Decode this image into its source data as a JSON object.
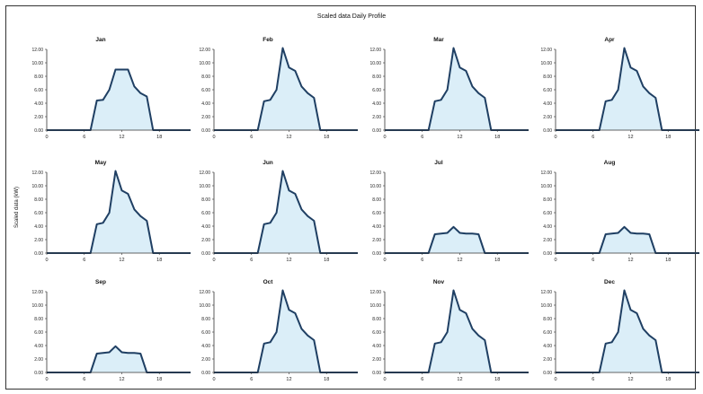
{
  "title": "Scaled data Daily Profile",
  "ylabel": "Scaled data (kW)",
  "colors": {
    "line": "#1f3f63",
    "fill": "#dbeef8",
    "axis": "#333333"
  },
  "chart_data": [
    {
      "type": "area",
      "title": "Jan",
      "xticks": [
        0,
        6,
        12,
        18
      ],
      "yticks": [
        "0.00",
        "2.00",
        "4.00",
        "6.00",
        "8.00",
        "10.00",
        "12.00"
      ],
      "xlim": [
        0,
        23
      ],
      "ylim": [
        0,
        12
      ],
      "grid": false,
      "x": [
        0,
        1,
        2,
        3,
        4,
        5,
        6,
        7,
        8,
        9,
        10,
        11,
        12,
        13,
        14,
        15,
        16,
        17,
        18,
        19,
        20,
        21,
        22,
        23
      ],
      "values": [
        0,
        0,
        0,
        0,
        0,
        0,
        0,
        0,
        4.4,
        4.5,
        6,
        9,
        9,
        9,
        6.5,
        5.5,
        5,
        0,
        0,
        0,
        0,
        0,
        0,
        0
      ]
    },
    {
      "type": "area",
      "title": "Feb",
      "xticks": [
        0,
        6,
        12,
        18
      ],
      "yticks": [
        "0.00",
        "2.00",
        "4.00",
        "6.00",
        "8.00",
        "10.00",
        "12.00"
      ],
      "xlim": [
        0,
        23
      ],
      "ylim": [
        0,
        12
      ],
      "grid": false,
      "x": [
        0,
        1,
        2,
        3,
        4,
        5,
        6,
        7,
        8,
        9,
        10,
        11,
        12,
        13,
        14,
        15,
        16,
        17,
        18,
        19,
        20,
        21,
        22,
        23
      ],
      "values": [
        0,
        0,
        0,
        0,
        0,
        0,
        0,
        0,
        4.3,
        4.5,
        6,
        12.2,
        9.3,
        8.8,
        6.5,
        5.5,
        4.8,
        0,
        0,
        0,
        0,
        0,
        0,
        0
      ]
    },
    {
      "type": "area",
      "title": "Mar",
      "xticks": [
        0,
        6,
        12,
        18
      ],
      "yticks": [
        "0.00",
        "2.00",
        "4.00",
        "6.00",
        "8.00",
        "10.00",
        "12.00"
      ],
      "xlim": [
        0,
        23
      ],
      "ylim": [
        0,
        12
      ],
      "grid": false,
      "x": [
        0,
        1,
        2,
        3,
        4,
        5,
        6,
        7,
        8,
        9,
        10,
        11,
        12,
        13,
        14,
        15,
        16,
        17,
        18,
        19,
        20,
        21,
        22,
        23
      ],
      "values": [
        0,
        0,
        0,
        0,
        0,
        0,
        0,
        0,
        4.3,
        4.5,
        6,
        12.2,
        9.3,
        8.8,
        6.5,
        5.5,
        4.8,
        0,
        0,
        0,
        0,
        0,
        0,
        0
      ]
    },
    {
      "type": "area",
      "title": "Apr",
      "xticks": [
        0,
        6,
        12,
        18
      ],
      "yticks": [
        "0.00",
        "2.00",
        "4.00",
        "6.00",
        "8.00",
        "10.00",
        "12.00"
      ],
      "xlim": [
        0,
        23
      ],
      "ylim": [
        0,
        12
      ],
      "grid": false,
      "x": [
        0,
        1,
        2,
        3,
        4,
        5,
        6,
        7,
        8,
        9,
        10,
        11,
        12,
        13,
        14,
        15,
        16,
        17,
        18,
        19,
        20,
        21,
        22,
        23
      ],
      "values": [
        0,
        0,
        0,
        0,
        0,
        0,
        0,
        0,
        4.3,
        4.5,
        6,
        12.2,
        9.3,
        8.8,
        6.5,
        5.5,
        4.8,
        0,
        0,
        0,
        0,
        0,
        0,
        0
      ]
    },
    {
      "type": "area",
      "title": "May",
      "xticks": [
        0,
        6,
        12,
        18
      ],
      "yticks": [
        "0.00",
        "2.00",
        "4.00",
        "6.00",
        "8.00",
        "10.00",
        "12.00"
      ],
      "xlim": [
        0,
        23
      ],
      "ylim": [
        0,
        12
      ],
      "grid": false,
      "x": [
        0,
        1,
        2,
        3,
        4,
        5,
        6,
        7,
        8,
        9,
        10,
        11,
        12,
        13,
        14,
        15,
        16,
        17,
        18,
        19,
        20,
        21,
        22,
        23
      ],
      "values": [
        0,
        0,
        0,
        0,
        0,
        0,
        0,
        0,
        4.3,
        4.5,
        6,
        12.2,
        9.3,
        8.8,
        6.5,
        5.5,
        4.8,
        0,
        0,
        0,
        0,
        0,
        0,
        0
      ]
    },
    {
      "type": "area",
      "title": "Jun",
      "xticks": [
        0,
        6,
        12,
        18
      ],
      "yticks": [
        "0.00",
        "2.00",
        "4.00",
        "6.00",
        "8.00",
        "10.00",
        "12.00"
      ],
      "xlim": [
        0,
        23
      ],
      "ylim": [
        0,
        12
      ],
      "grid": false,
      "x": [
        0,
        1,
        2,
        3,
        4,
        5,
        6,
        7,
        8,
        9,
        10,
        11,
        12,
        13,
        14,
        15,
        16,
        17,
        18,
        19,
        20,
        21,
        22,
        23
      ],
      "values": [
        0,
        0,
        0,
        0,
        0,
        0,
        0,
        0,
        4.3,
        4.5,
        6,
        12.2,
        9.3,
        8.8,
        6.5,
        5.5,
        4.8,
        0,
        0,
        0,
        0,
        0,
        0,
        0
      ]
    },
    {
      "type": "area",
      "title": "Jul",
      "xticks": [
        0,
        6,
        12,
        18
      ],
      "yticks": [
        "0.00",
        "2.00",
        "4.00",
        "6.00",
        "8.00",
        "10.00",
        "12.00"
      ],
      "xlim": [
        0,
        23
      ],
      "ylim": [
        0,
        12
      ],
      "grid": false,
      "x": [
        0,
        1,
        2,
        3,
        4,
        5,
        6,
        7,
        8,
        9,
        10,
        11,
        12,
        13,
        14,
        15,
        16,
        17,
        18,
        19,
        20,
        21,
        22,
        23
      ],
      "values": [
        0,
        0,
        0,
        0,
        0,
        0,
        0,
        0,
        2.8,
        2.9,
        3,
        3.9,
        3,
        2.9,
        2.9,
        2.8,
        0,
        0,
        0,
        0,
        0,
        0,
        0,
        0
      ]
    },
    {
      "type": "area",
      "title": "Aug",
      "xticks": [
        0,
        6,
        12,
        18
      ],
      "yticks": [
        "0.00",
        "2.00",
        "4.00",
        "6.00",
        "8.00",
        "10.00",
        "12.00"
      ],
      "xlim": [
        0,
        23
      ],
      "ylim": [
        0,
        12
      ],
      "grid": false,
      "x": [
        0,
        1,
        2,
        3,
        4,
        5,
        6,
        7,
        8,
        9,
        10,
        11,
        12,
        13,
        14,
        15,
        16,
        17,
        18,
        19,
        20,
        21,
        22,
        23
      ],
      "values": [
        0,
        0,
        0,
        0,
        0,
        0,
        0,
        0,
        2.8,
        2.9,
        3,
        3.9,
        3,
        2.9,
        2.9,
        2.8,
        0,
        0,
        0,
        0,
        0,
        0,
        0,
        0
      ]
    },
    {
      "type": "area",
      "title": "Sep",
      "xticks": [
        0,
        6,
        12,
        18
      ],
      "yticks": [
        "0.00",
        "2.00",
        "4.00",
        "6.00",
        "8.00",
        "10.00",
        "12.00"
      ],
      "xlim": [
        0,
        23
      ],
      "ylim": [
        0,
        12
      ],
      "grid": false,
      "x": [
        0,
        1,
        2,
        3,
        4,
        5,
        6,
        7,
        8,
        9,
        10,
        11,
        12,
        13,
        14,
        15,
        16,
        17,
        18,
        19,
        20,
        21,
        22,
        23
      ],
      "values": [
        0,
        0,
        0,
        0,
        0,
        0,
        0,
        0,
        2.8,
        2.9,
        3,
        3.9,
        3,
        2.9,
        2.9,
        2.8,
        0,
        0,
        0,
        0,
        0,
        0,
        0,
        0
      ]
    },
    {
      "type": "area",
      "title": "Oct",
      "xticks": [
        0,
        6,
        12,
        18
      ],
      "yticks": [
        "0.00",
        "2.00",
        "4.00",
        "6.00",
        "8.00",
        "10.00",
        "12.00"
      ],
      "xlim": [
        0,
        23
      ],
      "ylim": [
        0,
        12
      ],
      "grid": false,
      "x": [
        0,
        1,
        2,
        3,
        4,
        5,
        6,
        7,
        8,
        9,
        10,
        11,
        12,
        13,
        14,
        15,
        16,
        17,
        18,
        19,
        20,
        21,
        22,
        23
      ],
      "values": [
        0,
        0,
        0,
        0,
        0,
        0,
        0,
        0,
        4.3,
        4.5,
        6,
        12.2,
        9.3,
        8.8,
        6.5,
        5.5,
        4.8,
        0,
        0,
        0,
        0,
        0,
        0,
        0
      ]
    },
    {
      "type": "area",
      "title": "Nov",
      "xticks": [
        0,
        6,
        12,
        18
      ],
      "yticks": [
        "0.00",
        "2.00",
        "4.00",
        "6.00",
        "8.00",
        "10.00",
        "12.00"
      ],
      "xlim": [
        0,
        23
      ],
      "ylim": [
        0,
        12
      ],
      "grid": false,
      "x": [
        0,
        1,
        2,
        3,
        4,
        5,
        6,
        7,
        8,
        9,
        10,
        11,
        12,
        13,
        14,
        15,
        16,
        17,
        18,
        19,
        20,
        21,
        22,
        23
      ],
      "values": [
        0,
        0,
        0,
        0,
        0,
        0,
        0,
        0,
        4.3,
        4.5,
        6,
        12.2,
        9.3,
        8.8,
        6.5,
        5.5,
        4.8,
        0,
        0,
        0,
        0,
        0,
        0,
        0
      ]
    },
    {
      "type": "area",
      "title": "Dec",
      "xticks": [
        0,
        6,
        12,
        18
      ],
      "yticks": [
        "0.00",
        "2.00",
        "4.00",
        "6.00",
        "8.00",
        "10.00",
        "12.00"
      ],
      "xlim": [
        0,
        23
      ],
      "ylim": [
        0,
        12
      ],
      "grid": false,
      "x": [
        0,
        1,
        2,
        3,
        4,
        5,
        6,
        7,
        8,
        9,
        10,
        11,
        12,
        13,
        14,
        15,
        16,
        17,
        18,
        19,
        20,
        21,
        22,
        23
      ],
      "values": [
        0,
        0,
        0,
        0,
        0,
        0,
        0,
        0,
        4.3,
        4.5,
        6,
        12.2,
        9.3,
        8.8,
        6.5,
        5.5,
        4.8,
        0,
        0,
        0,
        0,
        0,
        0,
        0
      ]
    }
  ]
}
